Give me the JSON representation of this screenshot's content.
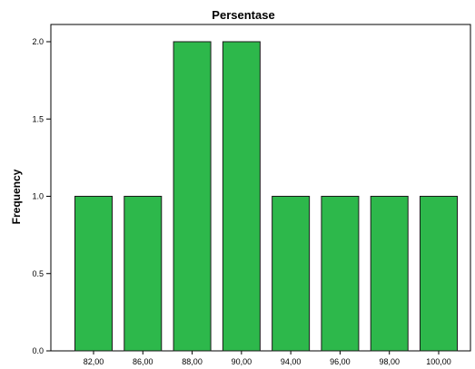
{
  "chart_data": {
    "type": "bar",
    "title": "Persentase",
    "xlabel": "",
    "ylabel": "Frequency",
    "categories": [
      "82,00",
      "86,00",
      "88,00",
      "90,00",
      "94,00",
      "96,00",
      "98,00",
      "100,00"
    ],
    "values": [
      1,
      1,
      2,
      2,
      1,
      1,
      1,
      1
    ],
    "ylim": [
      0,
      2.0
    ],
    "yticks": [
      "0.0",
      "0.5",
      "1.0",
      "1.5",
      "2.0"
    ],
    "bar_color": "#2db84b",
    "grid": false,
    "legend": "none"
  }
}
